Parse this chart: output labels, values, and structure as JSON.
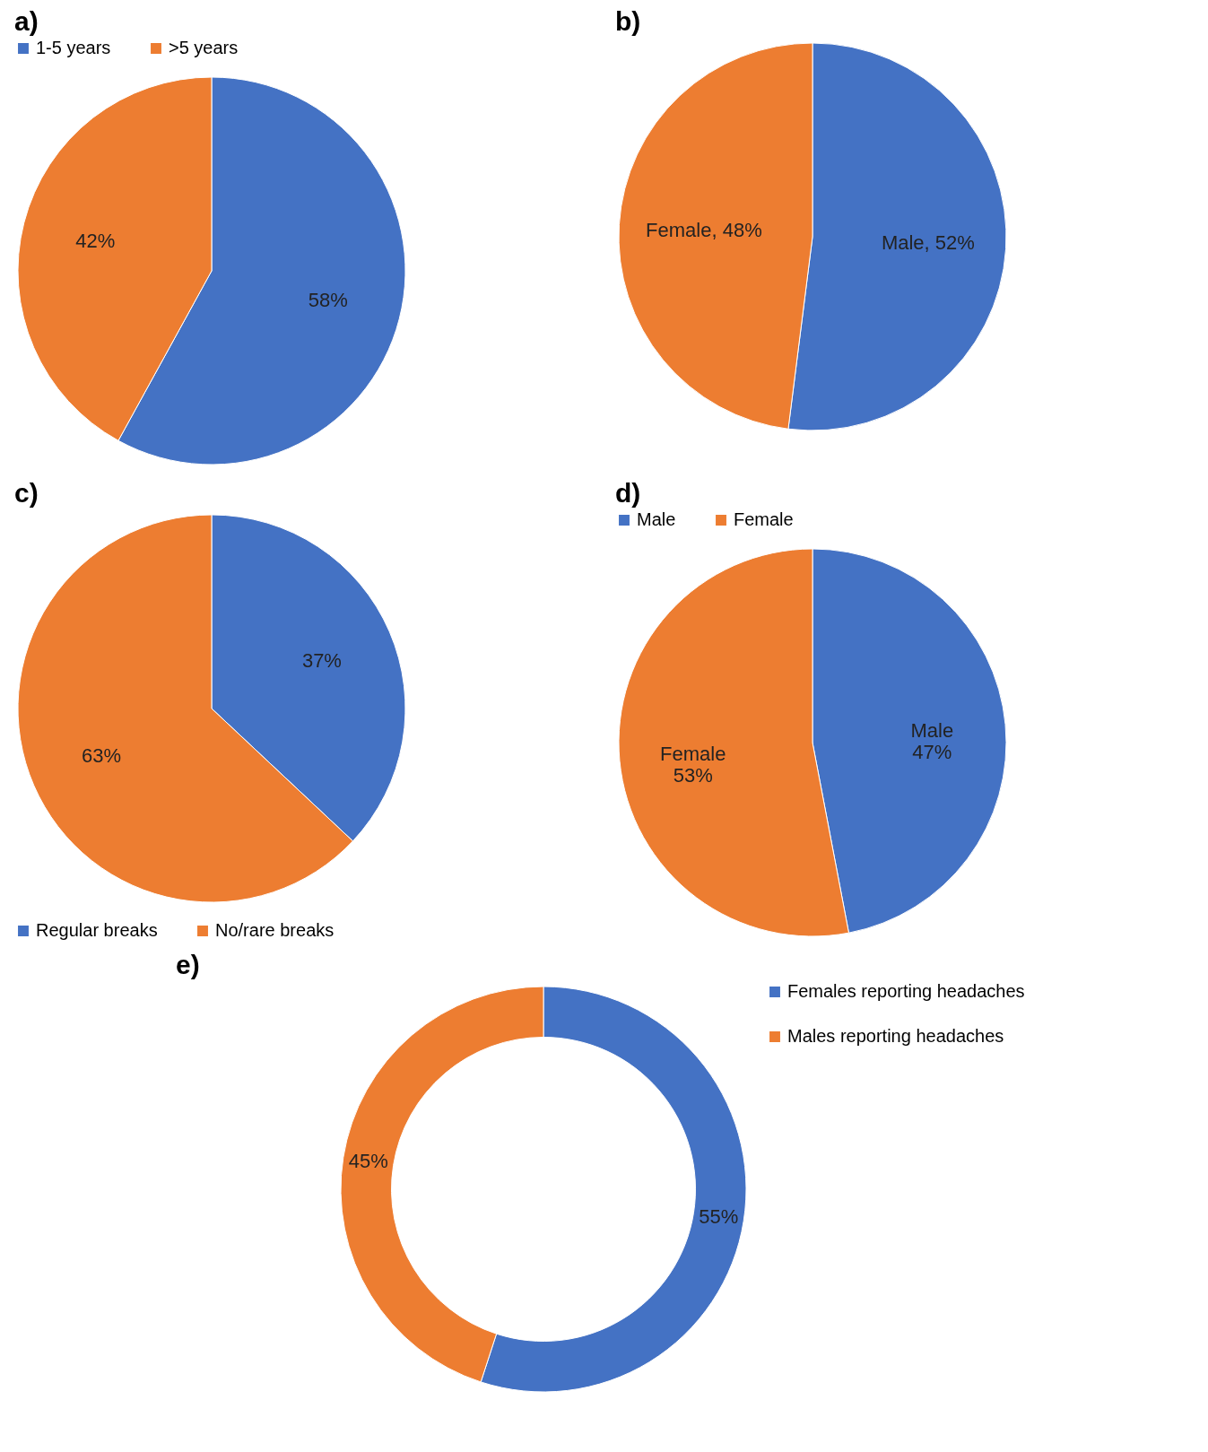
{
  "chart_data": [
    {
      "type": "pie",
      "title": "a)",
      "categories": [
        "1-5 years",
        ">5 years"
      ],
      "values": [
        58,
        42
      ],
      "colors": [
        "#4472c4",
        "#ed7d31"
      ],
      "value_labels": [
        "58%",
        "42%"
      ],
      "legend": "top"
    },
    {
      "type": "pie",
      "title": "b)",
      "categories": [
        "Male",
        "Female"
      ],
      "values": [
        52,
        48
      ],
      "colors": [
        "#4472c4",
        "#ed7d31"
      ],
      "value_labels": [
        ", 52%",
        ", 48%"
      ]
    },
    {
      "type": "pie",
      "title": "c)",
      "categories": [
        "Regular breaks",
        "No/rare breaks"
      ],
      "values": [
        37,
        63
      ],
      "colors": [
        "#4472c4",
        "#ed7d31"
      ],
      "value_labels": [
        "37%",
        "63%"
      ],
      "legend": "bottom"
    },
    {
      "type": "pie",
      "title": "d)",
      "categories": [
        "Male",
        "Female"
      ],
      "values": [
        47,
        53
      ],
      "colors": [
        "#4472c4",
        "#ed7d31"
      ],
      "value_labels": [
        "Male\n47%",
        "Female\n53%"
      ],
      "legend": "top"
    },
    {
      "type": "donut",
      "title": "e)",
      "categories": [
        "Females reporting headaches",
        "Males reporting headaches"
      ],
      "values": [
        55,
        45
      ],
      "colors": [
        "#4472c4",
        "#ed7d31"
      ],
      "value_labels": [
        "55%",
        "45%"
      ],
      "legend": "right"
    }
  ]
}
